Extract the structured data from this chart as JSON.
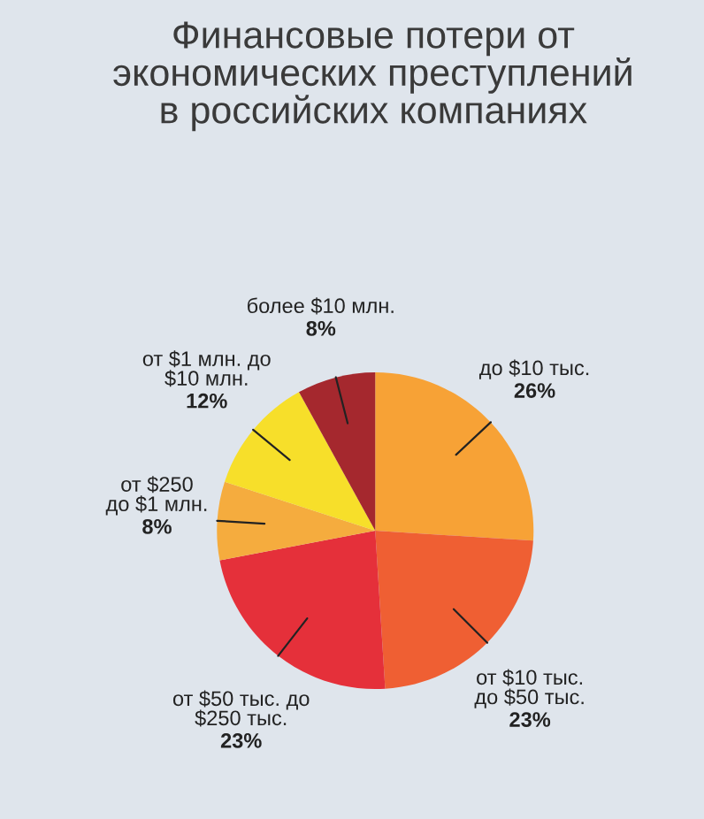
{
  "chart_data": {
    "type": "pie",
    "title": "Финансовые потери от\nэкономических преступлений\nв российских компаниях",
    "categories": [
      "до $10 тыс.",
      "от $10 тыс.\nдо $50 тыс.",
      "от $50 тыс. до\n$250 тыс.",
      "от $250\nдо $1 млн.",
      "от $1 млн. до\n$10 млн.",
      "более $10 млн."
    ],
    "values": [
      26,
      23,
      23,
      8,
      12,
      8
    ],
    "value_labels": [
      "26%",
      "23%",
      "23%",
      "8%",
      "12%",
      "8%"
    ],
    "colors": [
      "#f7a236",
      "#ef5f33",
      "#e5303a",
      "#f5ac3e",
      "#f7df2a",
      "#a5282e"
    ]
  }
}
